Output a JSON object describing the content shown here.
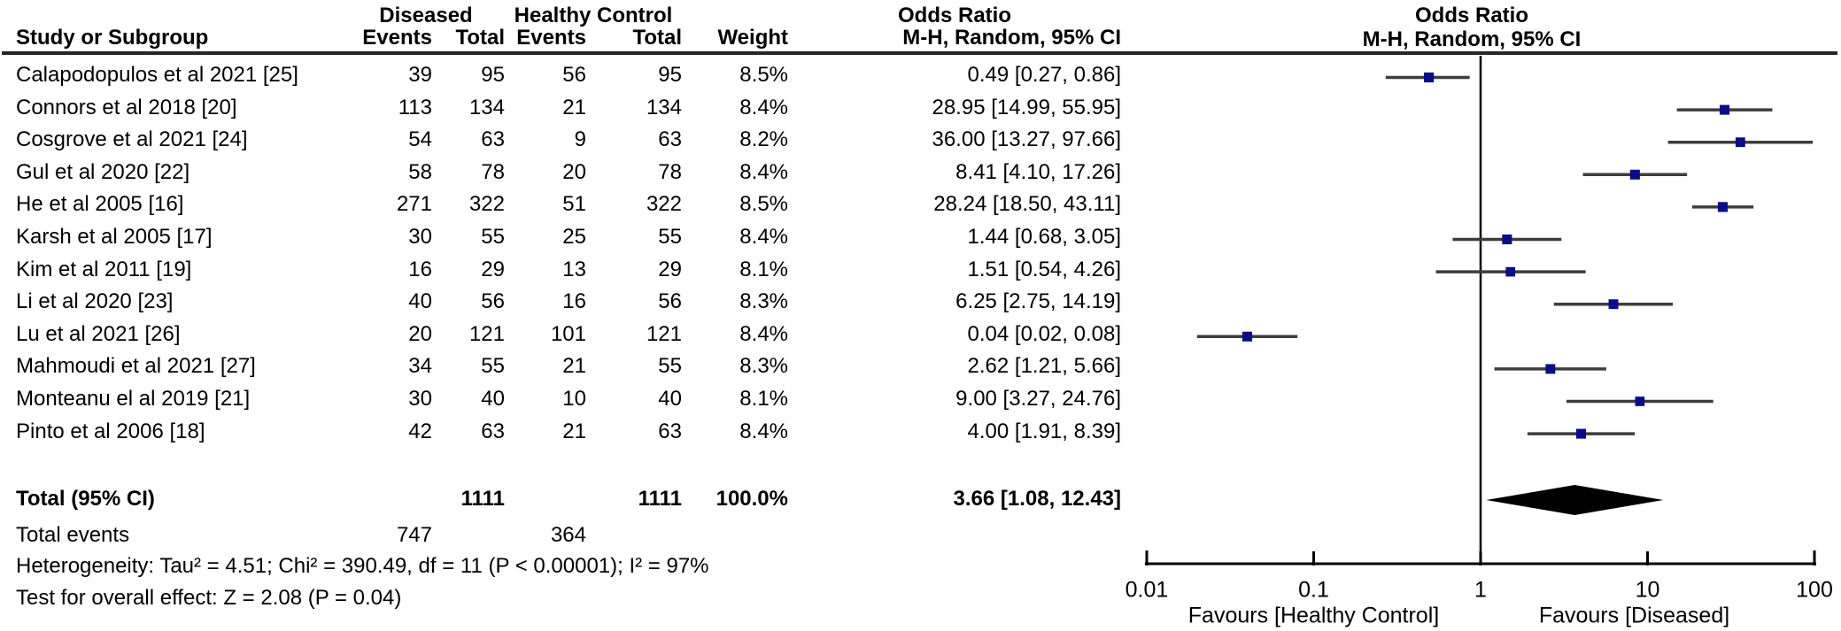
{
  "table": {
    "columns": {
      "study": "Study or Subgroup",
      "events": "Events",
      "total": "Total",
      "events2": "Events",
      "total2": "Total",
      "weight": "Weight",
      "method": "M-H, Random, 95% CI",
      "method_plot": "M-H, Random, 95% CI"
    },
    "groups": {
      "diseased": "Diseased",
      "healthy": "Healthy Control",
      "odds_ratio_text": "Odds Ratio",
      "odds_ratio_plot": "Odds Ratio"
    }
  },
  "totals": {
    "label": "Total (95% CI)",
    "d_total": "1111",
    "h_total": "1111",
    "weight": "100.0%",
    "or_ci": "3.66 [1.08, 12.43]"
  },
  "total_events": {
    "label": "Total events",
    "d": "747",
    "h": "364"
  },
  "footer": {
    "heterogeneity": "Heterogeneity: Tau² = 4.51; Chi² = 390.49, df = 11 (P < 0.00001); I² = 97%",
    "overall_test": "Test for overall effect: Z = 2.08 (P = 0.04)"
  },
  "chart_data": {
    "type": "forest",
    "x_scale": "log10",
    "x_ticks": [
      0.01,
      0.1,
      1,
      10,
      100
    ],
    "x_tick_labels": [
      "0.01",
      "0.1",
      "1",
      "10",
      "100"
    ],
    "null_line": 1,
    "favours_left": "Favours [Healthy Control]",
    "favours_right": "Favours [Diseased]",
    "colors": {
      "marker": "#0c0c87",
      "ci_line": "#3d3d3d",
      "diamond": "#000000",
      "axis": "#000000"
    },
    "studies": [
      {
        "label": "Calapodopulos et al 2021 [25]",
        "d_events": "39",
        "d_total": "95",
        "h_events": "56",
        "h_total": "95",
        "weight": "8.5%",
        "or_ci": "0.49 [0.27, 0.86]",
        "or": 0.49,
        "lo": 0.27,
        "hi": 0.86,
        "w": 8.5
      },
      {
        "label": "Connors et al 2018 [20]",
        "d_events": "113",
        "d_total": "134",
        "h_events": "21",
        "h_total": "134",
        "weight": "8.4%",
        "or_ci": "28.95 [14.99, 55.95]",
        "or": 28.95,
        "lo": 14.99,
        "hi": 55.95,
        "w": 8.4
      },
      {
        "label": "Cosgrove et al 2021 [24]",
        "d_events": "54",
        "d_total": "63",
        "h_events": "9",
        "h_total": "63",
        "weight": "8.2%",
        "or_ci": "36.00 [13.27, 97.66]",
        "or": 36.0,
        "lo": 13.27,
        "hi": 97.66,
        "w": 8.2
      },
      {
        "label": "Gul et al 2020 [22]",
        "d_events": "58",
        "d_total": "78",
        "h_events": "20",
        "h_total": "78",
        "weight": "8.4%",
        "or_ci": "8.41 [4.10, 17.26]",
        "or": 8.41,
        "lo": 4.1,
        "hi": 17.26,
        "w": 8.4
      },
      {
        "label": "He et al 2005 [16]",
        "d_events": "271",
        "d_total": "322",
        "h_events": "51",
        "h_total": "322",
        "weight": "8.5%",
        "or_ci": "28.24 [18.50, 43.11]",
        "or": 28.24,
        "lo": 18.5,
        "hi": 43.11,
        "w": 8.5
      },
      {
        "label": "Karsh et al 2005 [17]",
        "d_events": "30",
        "d_total": "55",
        "h_events": "25",
        "h_total": "55",
        "weight": "8.4%",
        "or_ci": "1.44 [0.68, 3.05]",
        "or": 1.44,
        "lo": 0.68,
        "hi": 3.05,
        "w": 8.4
      },
      {
        "label": "Kim et al 2011 [19]",
        "d_events": "16",
        "d_total": "29",
        "h_events": "13",
        "h_total": "29",
        "weight": "8.1%",
        "or_ci": "1.51 [0.54, 4.26]",
        "or": 1.51,
        "lo": 0.54,
        "hi": 4.26,
        "w": 8.1
      },
      {
        "label": "Li et al 2020 [23]",
        "d_events": "40",
        "d_total": "56",
        "h_events": "16",
        "h_total": "56",
        "weight": "8.3%",
        "or_ci": "6.25 [2.75, 14.19]",
        "or": 6.25,
        "lo": 2.75,
        "hi": 14.19,
        "w": 8.3
      },
      {
        "label": "Lu et al 2021 [26]",
        "d_events": "20",
        "d_total": "121",
        "h_events": "101",
        "h_total": "121",
        "weight": "8.4%",
        "or_ci": "0.04 [0.02, 0.08]",
        "or": 0.04,
        "lo": 0.02,
        "hi": 0.08,
        "w": 8.4
      },
      {
        "label": "Mahmoudi et al 2021 [27]",
        "d_events": "34",
        "d_total": "55",
        "h_events": "21",
        "h_total": "55",
        "weight": "8.3%",
        "or_ci": "2.62 [1.21, 5.66]",
        "or": 2.62,
        "lo": 1.21,
        "hi": 5.66,
        "w": 8.3
      },
      {
        "label": "Monteanu el al 2019 [21]",
        "d_events": "30",
        "d_total": "40",
        "h_events": "10",
        "h_total": "40",
        "weight": "8.1%",
        "or_ci": "9.00 [3.27, 24.76]",
        "or": 9.0,
        "lo": 3.27,
        "hi": 24.76,
        "w": 8.1
      },
      {
        "label": "Pinto et al 2006 [18]",
        "d_events": "42",
        "d_total": "63",
        "h_events": "21",
        "h_total": "63",
        "weight": "8.4%",
        "or_ci": "4.00 [1.91, 8.39]",
        "or": 4.0,
        "lo": 1.91,
        "hi": 8.39,
        "w": 8.4
      }
    ],
    "total": {
      "or": 3.66,
      "lo": 1.08,
      "hi": 12.43
    }
  }
}
